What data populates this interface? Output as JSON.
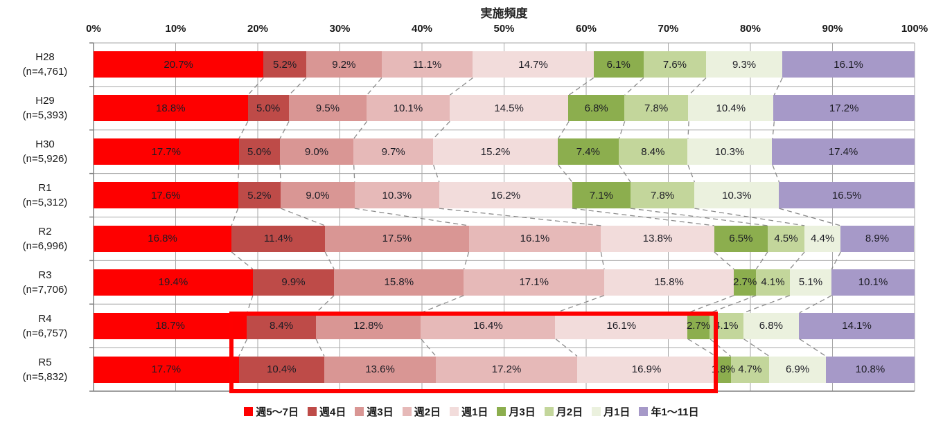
{
  "chart_data": {
    "type": "bar",
    "variant": "horizontal-stacked-100pct",
    "title": "実施頻度",
    "value_suffix": "%",
    "grid": true,
    "legend_position": "bottom",
    "x_axis": {
      "position": "top",
      "min": 0,
      "max": 100,
      "ticks": [
        "0%",
        "10%",
        "20%",
        "30%",
        "40%",
        "50%",
        "60%",
        "70%",
        "80%",
        "90%",
        "100%"
      ]
    },
    "categories": [
      {
        "label": "H28",
        "n_label": "(n=4,761)"
      },
      {
        "label": "H29",
        "n_label": "(n=5,393)"
      },
      {
        "label": "H30",
        "n_label": "(n=5,926)"
      },
      {
        "label": "R1",
        "n_label": "(n=5,312)"
      },
      {
        "label": "R2",
        "n_label": "(n=6,996)"
      },
      {
        "label": "R3",
        "n_label": "(n=7,706)"
      },
      {
        "label": "R4",
        "n_label": "(n=6,757)"
      },
      {
        "label": "R5",
        "n_label": "(n=5,832)"
      }
    ],
    "series": [
      {
        "name": "週5〜7日",
        "color": "#fe0000",
        "values": [
          20.7,
          18.8,
          17.7,
          17.6,
          16.8,
          19.4,
          18.7,
          17.7
        ]
      },
      {
        "name": "週4日",
        "color": "#be4b48",
        "values": [
          5.2,
          5.0,
          5.0,
          5.2,
          11.4,
          9.9,
          8.4,
          10.4
        ]
      },
      {
        "name": "週3日",
        "color": "#d99694",
        "values": [
          9.2,
          9.5,
          9.0,
          9.0,
          17.5,
          15.8,
          12.8,
          13.6
        ]
      },
      {
        "name": "週2日",
        "color": "#e6b9b8",
        "values": [
          11.1,
          10.1,
          9.7,
          10.3,
          16.1,
          17.1,
          16.4,
          17.2
        ]
      },
      {
        "name": "週1日",
        "color": "#f2dcdb",
        "values": [
          14.7,
          14.5,
          15.2,
          16.2,
          13.8,
          15.8,
          16.1,
          16.9
        ]
      },
      {
        "name": "月3日",
        "color": "#8cae4e",
        "values": [
          6.1,
          6.8,
          7.4,
          7.1,
          6.5,
          2.7,
          2.7,
          1.8
        ]
      },
      {
        "name": "月2日",
        "color": "#c3d69b",
        "values": [
          7.6,
          7.8,
          8.4,
          7.8,
          4.5,
          4.1,
          4.1,
          4.7
        ]
      },
      {
        "name": "月1日",
        "color": "#ebf1de",
        "values": [
          9.3,
          10.4,
          10.3,
          10.3,
          4.4,
          5.1,
          6.8,
          6.9
        ]
      },
      {
        "name": "年1〜11日",
        "color": "#a699c8",
        "values": [
          16.1,
          17.2,
          17.4,
          16.5,
          8.9,
          10.1,
          14.1,
          10.8
        ]
      }
    ],
    "highlight_box": {
      "color": "#ff0000",
      "x_start_pct": 16.5,
      "x_end_pct": 76.0,
      "row_start": "R4",
      "row_end": "R5"
    },
    "style_colors": {
      "gridline": "#a6a6a6",
      "axis": "#808080",
      "connector": "#8c8c8c",
      "label_text": "#1c1c24"
    }
  }
}
